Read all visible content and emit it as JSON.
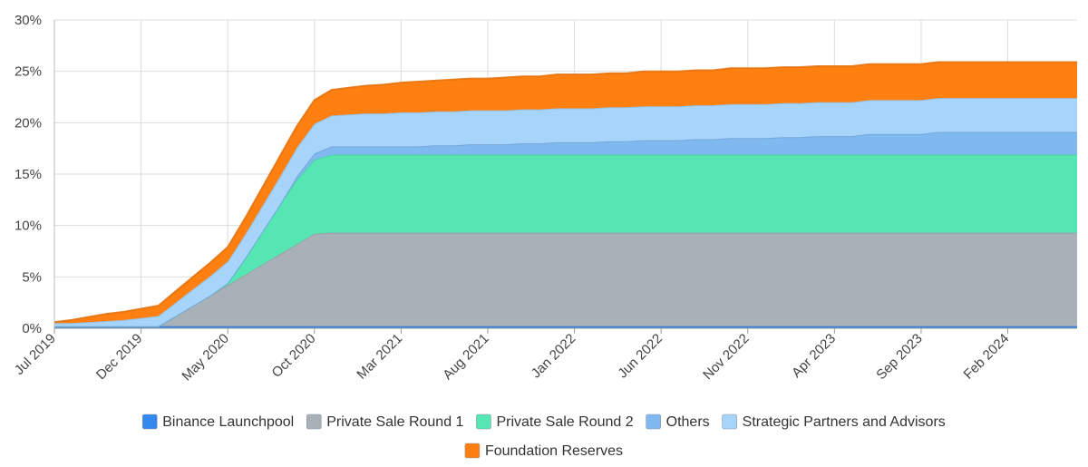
{
  "chart_data": {
    "type": "area",
    "stacked": true,
    "title": "",
    "xlabel": "",
    "ylabel": "",
    "ylim": [
      0,
      30
    ],
    "y_ticks": [
      "0%",
      "5%",
      "10%",
      "15%",
      "20%",
      "25%",
      "30%"
    ],
    "x_tick_labels": [
      "Jul 2019",
      "Dec 2019",
      "May 2020",
      "Oct 2020",
      "Mar 2021",
      "Aug 2021",
      "Jan 2022",
      "Jun 2022",
      "Nov 2022",
      "Apr 2023",
      "Sep 2023",
      "Feb 2024"
    ],
    "x_range_months": [
      0,
      59
    ],
    "legend_position": "bottom",
    "x_months": [
      0,
      1,
      2,
      3,
      4,
      5,
      6,
      7,
      8,
      9,
      10,
      11,
      12,
      13,
      14,
      15,
      16,
      17,
      18,
      19,
      20,
      21,
      22,
      23,
      24,
      25,
      26,
      27,
      28,
      29,
      30,
      31,
      32,
      33,
      34,
      35,
      36,
      37,
      38,
      39,
      40,
      41,
      42,
      43,
      44,
      45,
      46,
      47,
      48,
      49,
      50,
      51,
      52,
      53,
      54,
      55,
      56,
      57,
      58,
      59
    ],
    "series": [
      {
        "name": "Binance Launchpool",
        "color": "#3388ee",
        "values": [
          0.2,
          0.2,
          0.2,
          0.2,
          0.2,
          0.2,
          0.2,
          0.2,
          0.2,
          0.2,
          0.2,
          0.2,
          0.2,
          0.2,
          0.2,
          0.2,
          0.2,
          0.2,
          0.2,
          0.2,
          0.2,
          0.2,
          0.2,
          0.2,
          0.2,
          0.2,
          0.2,
          0.2,
          0.2,
          0.2,
          0.2,
          0.2,
          0.2,
          0.2,
          0.2,
          0.2,
          0.2,
          0.2,
          0.2,
          0.2,
          0.2,
          0.2,
          0.2,
          0.2,
          0.2,
          0.2,
          0.2,
          0.2,
          0.2,
          0.2,
          0.2,
          0.2,
          0.2,
          0.2,
          0.2,
          0.2,
          0.2,
          0.2,
          0.2,
          0.2
        ]
      },
      {
        "name": "Private Sale Round 1",
        "color": "#a8b0b8",
        "values": [
          0,
          0,
          0,
          0,
          0,
          0,
          0,
          1.0,
          2.0,
          3.0,
          4.0,
          5.0,
          6.0,
          7.0,
          8.0,
          9.0,
          9.1,
          9.1,
          9.1,
          9.1,
          9.1,
          9.1,
          9.1,
          9.1,
          9.1,
          9.1,
          9.1,
          9.1,
          9.1,
          9.1,
          9.1,
          9.1,
          9.1,
          9.1,
          9.1,
          9.1,
          9.1,
          9.1,
          9.1,
          9.1,
          9.1,
          9.1,
          9.1,
          9.1,
          9.1,
          9.1,
          9.1,
          9.1,
          9.1,
          9.1,
          9.1,
          9.1,
          9.1,
          9.1,
          9.1,
          9.1,
          9.1,
          9.1,
          9.1,
          9.1
        ]
      },
      {
        "name": "Private Sale Round 2",
        "color": "#55e6b3",
        "values": [
          0,
          0,
          0,
          0,
          0,
          0,
          0,
          0,
          0,
          0,
          0.2,
          1.6,
          3.2,
          4.8,
          6.3,
          7.2,
          7.6,
          7.6,
          7.6,
          7.6,
          7.6,
          7.6,
          7.6,
          7.6,
          7.6,
          7.6,
          7.6,
          7.6,
          7.6,
          7.6,
          7.6,
          7.6,
          7.6,
          7.6,
          7.6,
          7.6,
          7.6,
          7.6,
          7.6,
          7.6,
          7.6,
          7.6,
          7.6,
          7.6,
          7.6,
          7.6,
          7.6,
          7.6,
          7.6,
          7.6,
          7.6,
          7.6,
          7.6,
          7.6,
          7.6,
          7.6,
          7.6,
          7.6,
          7.6,
          7.6
        ]
      },
      {
        "name": "Others",
        "color": "#80b8f0",
        "values": [
          0,
          0,
          0,
          0,
          0,
          0,
          0,
          0,
          0,
          0,
          0,
          0,
          0,
          0,
          0.3,
          0.6,
          0.8,
          0.8,
          0.8,
          0.8,
          0.8,
          0.8,
          0.9,
          0.9,
          1.0,
          1.0,
          1.0,
          1.1,
          1.1,
          1.2,
          1.2,
          1.2,
          1.3,
          1.3,
          1.4,
          1.4,
          1.4,
          1.5,
          1.5,
          1.6,
          1.6,
          1.6,
          1.7,
          1.7,
          1.8,
          1.8,
          1.8,
          2.0,
          2.0,
          2.0,
          2.0,
          2.2,
          2.2,
          2.2,
          2.2,
          2.2,
          2.2,
          2.2,
          2.2,
          2.2
        ]
      },
      {
        "name": "Strategic Partners and Advisors",
        "color": "#a6d4fa",
        "values": [
          0.3,
          0.3,
          0.4,
          0.5,
          0.6,
          0.8,
          1.0,
          1.3,
          1.6,
          1.9,
          2.1,
          2.3,
          2.5,
          2.7,
          2.8,
          2.9,
          3.0,
          3.1,
          3.2,
          3.2,
          3.3,
          3.3,
          3.3,
          3.3,
          3.3,
          3.3,
          3.3,
          3.3,
          3.3,
          3.3,
          3.3,
          3.3,
          3.3,
          3.3,
          3.3,
          3.3,
          3.3,
          3.3,
          3.3,
          3.3,
          3.3,
          3.3,
          3.3,
          3.3,
          3.3,
          3.3,
          3.3,
          3.3,
          3.3,
          3.3,
          3.3,
          3.3,
          3.3,
          3.3,
          3.3,
          3.3,
          3.3,
          3.3,
          3.3,
          3.3
        ]
      },
      {
        "name": "Foundation Reserves",
        "color": "#ff8010",
        "values": [
          0.1,
          0.3,
          0.5,
          0.7,
          0.8,
          0.9,
          1.0,
          1.1,
          1.2,
          1.3,
          1.4,
          1.6,
          1.8,
          2.0,
          2.1,
          2.3,
          2.5,
          2.6,
          2.7,
          2.8,
          2.9,
          3.0,
          3.0,
          3.1,
          3.1,
          3.1,
          3.2,
          3.2,
          3.2,
          3.3,
          3.3,
          3.3,
          3.3,
          3.3,
          3.4,
          3.4,
          3.4,
          3.4,
          3.4,
          3.5,
          3.5,
          3.5,
          3.5,
          3.5,
          3.5,
          3.5,
          3.5,
          3.5,
          3.5,
          3.5,
          3.5,
          3.5,
          3.5,
          3.5,
          3.5,
          3.5,
          3.5,
          3.5,
          3.5,
          3.5
        ]
      }
    ]
  }
}
